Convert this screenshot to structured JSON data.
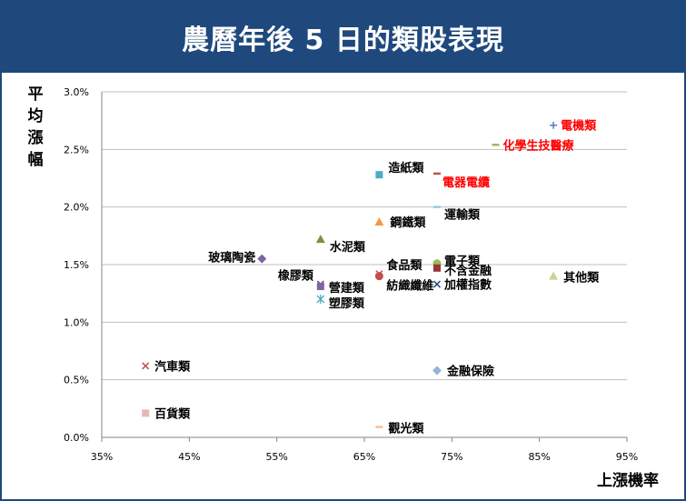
{
  "chart_data": {
    "type": "scatter",
    "title": "農曆年後 5 日的類股表現",
    "xlabel": "上漲機率",
    "ylabel": "平均漲幅",
    "xlim": [
      0.35,
      0.95
    ],
    "ylim": [
      0.0,
      0.03
    ],
    "x_ticks": [
      "35%",
      "45%",
      "55%",
      "65%",
      "75%",
      "85%",
      "95%"
    ],
    "y_ticks": [
      "0.0%",
      "0.5%",
      "1.0%",
      "1.5%",
      "2.0%",
      "2.5%",
      "3.0%"
    ],
    "grid": "horizontal",
    "highlight_color": "#ff0000",
    "points": [
      {
        "label": "電機類",
        "x": 0.866,
        "y": 0.0271,
        "marker": "plus",
        "color": "#4f81bd",
        "highlight": true
      },
      {
        "label": "化學生技醫療",
        "x": 0.8,
        "y": 0.0254,
        "marker": "dash",
        "color": "#9bbb59",
        "highlight": true
      },
      {
        "label": "電器電纜",
        "x": 0.733,
        "y": 0.0229,
        "marker": "dash",
        "color": "#c0504d",
        "highlight": true
      },
      {
        "label": "造紙類",
        "x": 0.667,
        "y": 0.0228,
        "marker": "square",
        "color": "#4bacc6"
      },
      {
        "label": "運輸類",
        "x": 0.733,
        "y": 0.02,
        "marker": "dash",
        "color": "#93cddd"
      },
      {
        "label": "鋼鐵類",
        "x": 0.667,
        "y": 0.0187,
        "marker": "triangle",
        "color": "#f79646"
      },
      {
        "label": "水泥類",
        "x": 0.6,
        "y": 0.0172,
        "marker": "triangle",
        "color": "#77933c"
      },
      {
        "label": "玻璃陶瓷",
        "x": 0.533,
        "y": 0.0155,
        "marker": "diamond",
        "color": "#8064a2"
      },
      {
        "label": "電子類",
        "x": 0.733,
        "y": 0.0151,
        "marker": "circle",
        "color": "#9bbb59"
      },
      {
        "label": "不含金融",
        "x": 0.733,
        "y": 0.0147,
        "marker": "square",
        "color": "#953735"
      },
      {
        "label": "食品類",
        "x": 0.667,
        "y": 0.0142,
        "marker": "x",
        "color": "#c0504d"
      },
      {
        "label": "其他類",
        "x": 0.866,
        "y": 0.014,
        "marker": "triangle",
        "color": "#c3d69b"
      },
      {
        "label": "紡織纖維",
        "x": 0.667,
        "y": 0.014,
        "marker": "circle",
        "color": "#c0504d"
      },
      {
        "label": "加權指數",
        "x": 0.733,
        "y": 0.0133,
        "marker": "x",
        "color": "#1f497d"
      },
      {
        "label": "橡膠類",
        "x": 0.6,
        "y": 0.0133,
        "marker": "x",
        "color": "#604a7b"
      },
      {
        "label": "營建類",
        "x": 0.6,
        "y": 0.0131,
        "marker": "square",
        "color": "#8064a2"
      },
      {
        "label": "塑膠類",
        "x": 0.6,
        "y": 0.012,
        "marker": "star",
        "color": "#4bacc6"
      },
      {
        "label": "汽車類",
        "x": 0.4,
        "y": 0.0062,
        "marker": "x",
        "color": "#c0504d"
      },
      {
        "label": "金融保險",
        "x": 0.733,
        "y": 0.0058,
        "marker": "diamond",
        "color": "#95b3d7"
      },
      {
        "label": "百貨類",
        "x": 0.4,
        "y": 0.0021,
        "marker": "square",
        "color": "#e6b9b8"
      },
      {
        "label": "觀光類",
        "x": 0.667,
        "y": 0.0009,
        "marker": "dash",
        "color": "#fac090"
      }
    ]
  }
}
